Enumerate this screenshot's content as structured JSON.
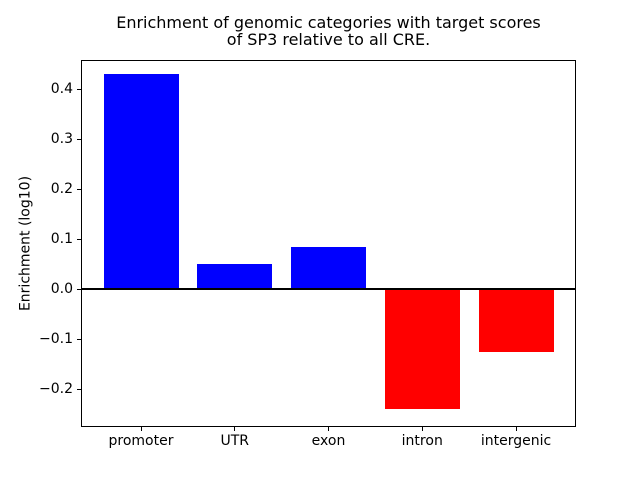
{
  "chart_data": {
    "type": "bar",
    "title": "Enrichment of genomic categories with target scores\nof SP3 relative to all CRE.",
    "xlabel": "",
    "ylabel": "Enrichment (log10)",
    "categories": [
      "promoter",
      "UTR",
      "exon",
      "intron",
      "intergenic"
    ],
    "values": [
      0.43,
      0.05,
      0.085,
      -0.24,
      -0.125
    ],
    "bar_colors": [
      "#0000ff",
      "#0000ff",
      "#0000ff",
      "#ff0000",
      "#ff0000"
    ],
    "positive_color": "#0000ff",
    "negative_color": "#ff0000",
    "yticks": [
      0.4,
      0.3,
      0.2,
      0.1,
      0.0,
      -0.1,
      -0.2
    ],
    "ytick_labels": [
      "0.4",
      "0.3",
      "0.2",
      "0.1",
      "0.0",
      "−0.1",
      "−0.2"
    ],
    "ylim": [
      -0.276,
      0.458
    ],
    "xlim": [
      -0.64,
      4.64
    ],
    "bar_width": 0.8,
    "zero_line": true,
    "grid": false,
    "legend": null
  }
}
